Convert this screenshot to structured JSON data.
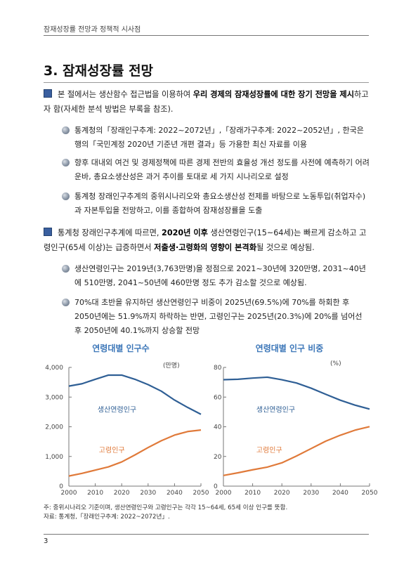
{
  "header": {
    "running_title": "잠재성장률 전망과 정책적 시사점"
  },
  "section": {
    "title": "3. 잠재성장률 전망"
  },
  "para1": {
    "pre": "본 절에서는 생산함수 접근법을 이용하여 ",
    "bold": "우리 경제의 잠재성장률에 대한 장기 전망을 제시",
    "post": "하고자 함(자세한 분석 방법은 부록을 참조)."
  },
  "bullets1": [
    "통계청의「장래인구추계: 2022~2072년」,「장래가구추계: 2022~2052년」, 한국은행의「국민계정 2020년 기준년 개편 결과」등 가용한 최신 자료를 이용",
    "향후 대내외 여건 및 경제정책에 따른 경제 전반의 효율성 개선 정도를 사전에 예측하기 어려운바, 총요소생산성은 과거 추이를 토대로 세 가지 시나리오로 설정",
    "통계청 장래인구추계의 중위시나리오와 총요소생산성 전제를 바탕으로 노동투입(취업자수)과 자본투입을 전망하고, 이를 종합하여 잠재성장률을 도출"
  ],
  "para2": {
    "t1": "통계청 장래인구추계에 따르면, ",
    "b1": "2020년 이후",
    "t2": " 생산연령인구(15~64세)는 빠르게 감소하고 고령인구(65세 이상)는 급증하면서 ",
    "b2": "저출생·고령화의 영향이 본격화",
    "t3": "될 것으로 예상됨."
  },
  "bullets2": [
    "생산연령인구는 2019년(3,763만명)을 정점으로 2021~30년에 320만명, 2031~40년에 510만명, 2041~50년에 460만명 정도 추가 감소할 것으로 예상됨.",
    "70%대 초반을 유지하던 생산연령인구 비중이 2025년(69.5%)에 70%를 하회한 후 2050년에는 51.9%까지 하락하는 반면, 고령인구는 2025년(20.3%)에 20%를 넘어선 후 2050년에 40.1%까지 상승할 전망"
  ],
  "chart_data": [
    {
      "type": "line",
      "title": "연령대별 인구수",
      "unit": "(만명)",
      "x": [
        2000,
        2005,
        2010,
        2015,
        2020,
        2025,
        2030,
        2035,
        2040,
        2045,
        2050
      ],
      "xticks": [
        "2000",
        "2010",
        "2020",
        "2030",
        "2040",
        "2050"
      ],
      "yticks": [
        "0",
        "1,000",
        "2,000",
        "3,000",
        "4,000"
      ],
      "ylim": [
        0,
        4000
      ],
      "series": [
        {
          "name": "생산연령인구",
          "color": "#2f5f95",
          "values": [
            3370,
            3450,
            3600,
            3740,
            3740,
            3600,
            3420,
            3200,
            2900,
            2650,
            2420
          ]
        },
        {
          "name": "고령인구",
          "color": "#e07a3a",
          "values": [
            340,
            430,
            540,
            650,
            815,
            1050,
            1300,
            1530,
            1720,
            1840,
            1890
          ]
        }
      ]
    },
    {
      "type": "line",
      "title": "연령대별 인구 비중",
      "unit": "(%)",
      "x": [
        2000,
        2005,
        2010,
        2015,
        2020,
        2025,
        2030,
        2035,
        2040,
        2045,
        2050
      ],
      "xticks": [
        "2000",
        "2010",
        "2020",
        "2030",
        "2040",
        "2050"
      ],
      "yticks": [
        "0",
        "20",
        "40",
        "60",
        "80"
      ],
      "ylim": [
        0,
        80
      ],
      "series": [
        {
          "name": "생산연령인구",
          "color": "#2f5f95",
          "values": [
            71.7,
            72.0,
            72.8,
            73.4,
            71.7,
            69.5,
            66.0,
            61.9,
            57.9,
            54.6,
            51.9
          ]
        },
        {
          "name": "고령인구",
          "color": "#e07a3a",
          "values": [
            7.2,
            9.0,
            11.0,
            12.8,
            15.7,
            20.3,
            25.3,
            30.3,
            34.3,
            37.7,
            40.1
          ]
        }
      ]
    }
  ],
  "notes": {
    "note1": "주: 중위시나리오 기준이며, 생산연령인구와 고령인구는 각각 15~64세, 65세 이상 인구를 뜻함.",
    "note2": "자료: 통계청,「장래인구추계: 2022~2072년」."
  },
  "footer": {
    "page_number": "3"
  }
}
